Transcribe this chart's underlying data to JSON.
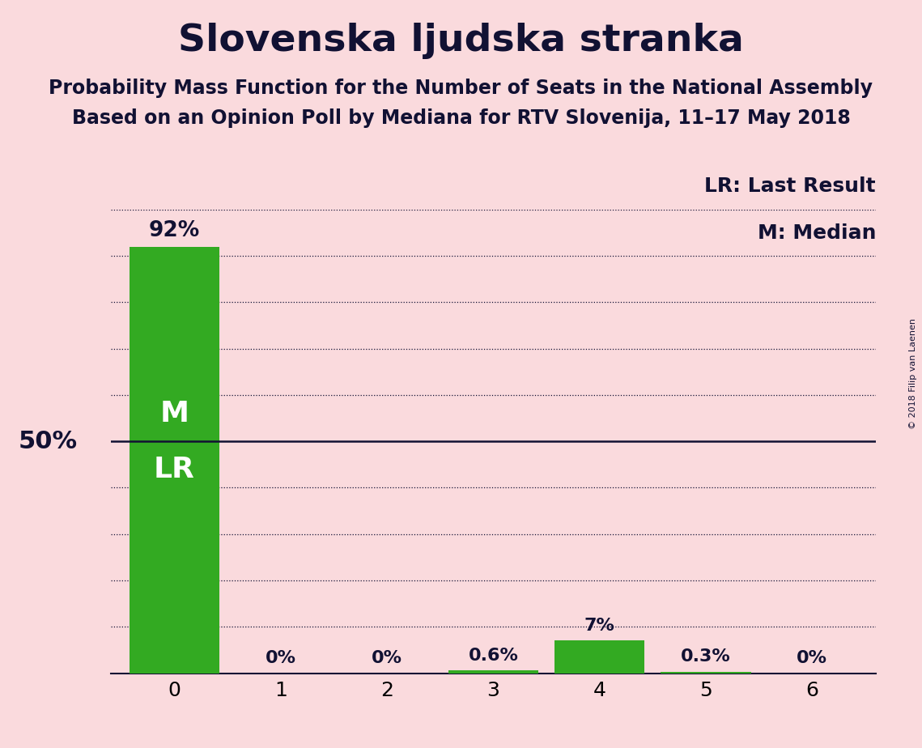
{
  "title": "Slovenska ljudska stranka",
  "subtitle1": "Probability Mass Function for the Number of Seats in the National Assembly",
  "subtitle2": "Based on an Opinion Poll by Mediana for RTV Slovenija, 11–17 May 2018",
  "copyright": "© 2018 Filip van Laenen",
  "categories": [
    0,
    1,
    2,
    3,
    4,
    5,
    6
  ],
  "values": [
    92.0,
    0.0,
    0.0,
    0.6,
    7.0,
    0.3,
    0.0
  ],
  "bar_color": "#33aa22",
  "background_color": "#fadadd",
  "bar_labels": [
    "92%",
    "0%",
    "0%",
    "0.6%",
    "7%",
    "0.3%",
    "0%"
  ],
  "ylabel_50": "50%",
  "ylim": [
    0,
    100
  ],
  "dotted_lines": [
    10,
    20,
    30,
    40,
    60,
    70,
    80,
    90,
    100
  ],
  "solid_line": 50,
  "legend_lr": "LR: Last Result",
  "legend_m": "M: Median",
  "title_fontsize": 34,
  "subtitle_fontsize": 17,
  "bar_label_fontsize": 16,
  "axis_tick_fontsize": 18,
  "ylabel50_fontsize": 22,
  "legend_fontsize": 18,
  "m_text": "M",
  "lr_text": "LR",
  "inside_label_fontsize": 26
}
